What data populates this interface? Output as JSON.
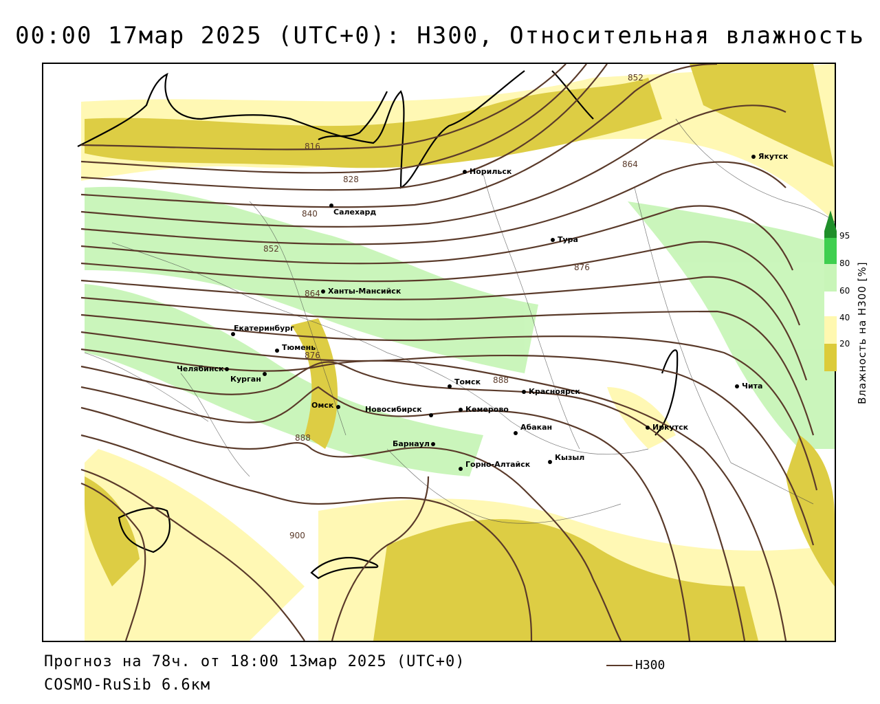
{
  "title": "00:00 17мар 2025 (UTC+0): H300, Относительная влажность",
  "footer": {
    "forecast": "Прогноз на 78ч. от 18:00 13мар 2025 (UTC+0)",
    "model": "COSMO-RuSib 6.6км"
  },
  "legend": {
    "line_label": "H300",
    "line_color": "#5a3a2a"
  },
  "colorbar": {
    "title": "Влажность на H300 [%]",
    "ticks": [
      "95",
      "80",
      "60",
      "40",
      "20"
    ],
    "colors": {
      "dark_green": "#1f8f2a",
      "green": "#3fcf4f",
      "light_green": "#c8f5b8",
      "light_yellow": "#fff8b0",
      "yellow": "#dccb3a"
    }
  },
  "cities": [
    {
      "name": "Норильск"
    },
    {
      "name": "Якутск"
    },
    {
      "name": "Салехард"
    },
    {
      "name": "Тура"
    },
    {
      "name": "Ханты-Мансийск"
    },
    {
      "name": "Екатеринбург"
    },
    {
      "name": "Тюмень"
    },
    {
      "name": "Челябинск"
    },
    {
      "name": "Курган"
    },
    {
      "name": "Омск"
    },
    {
      "name": "Новосибирск"
    },
    {
      "name": "Томск"
    },
    {
      "name": "Кемерово"
    },
    {
      "name": "Красноярск"
    },
    {
      "name": "Абакан"
    },
    {
      "name": "Барнаул"
    },
    {
      "name": "Горно-Алтайск"
    },
    {
      "name": "Кызыл"
    },
    {
      "name": "Иркутск"
    },
    {
      "name": "Чита"
    }
  ],
  "contour_labels": [
    "852",
    "816",
    "828",
    "840",
    "852",
    "864",
    "864",
    "876",
    "876",
    "888",
    "888",
    "900"
  ]
}
